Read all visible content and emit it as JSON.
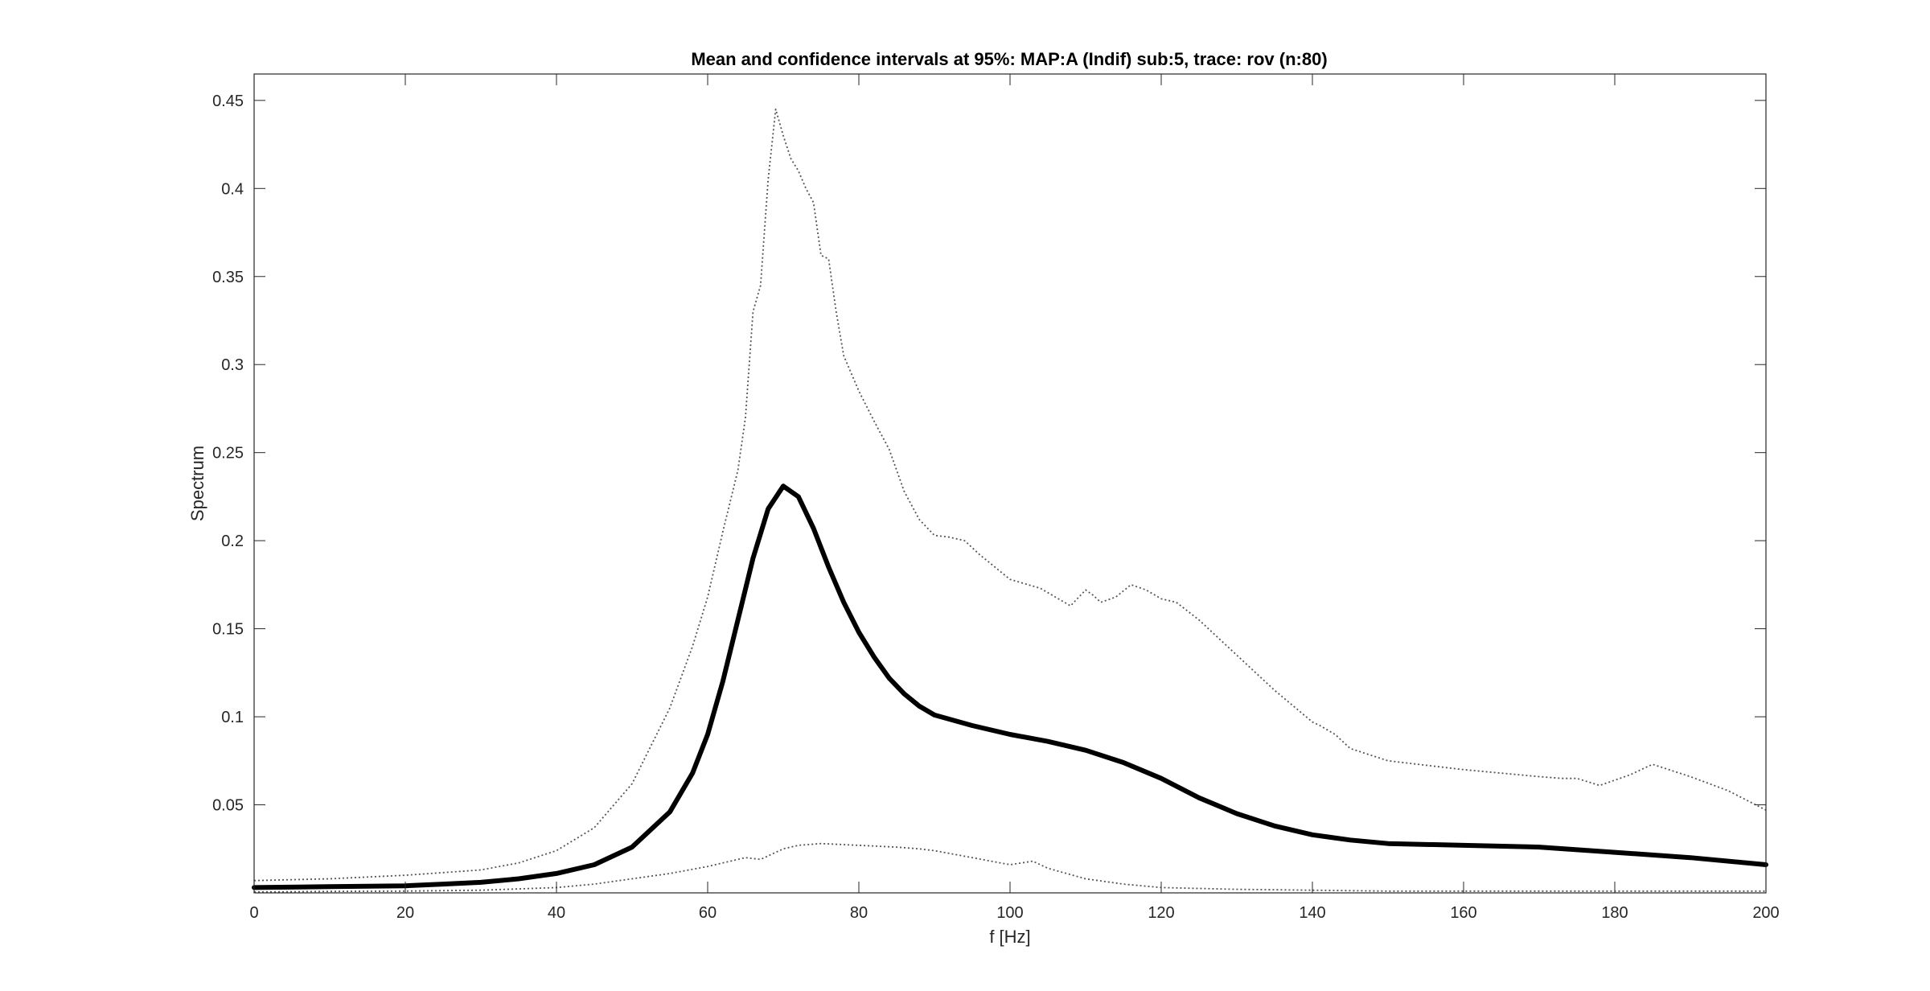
{
  "chart_data": {
    "type": "line",
    "title": "Mean and confidence intervals at 95%: MAP:A (Indif) sub:5, trace: rov (n:80)",
    "xlabel": "f [Hz]",
    "ylabel": "Spectrum",
    "xlim": [
      0,
      200
    ],
    "ylim": [
      0,
      0.465
    ],
    "xticks": [
      0,
      20,
      40,
      60,
      80,
      100,
      120,
      140,
      160,
      180,
      200
    ],
    "xtick_labels": [
      "0",
      "20",
      "40",
      "60",
      "80",
      "100",
      "120",
      "140",
      "160",
      "180",
      "200"
    ],
    "yticks": [
      0.05,
      0.1,
      0.15,
      0.2,
      0.25,
      0.3,
      0.35,
      0.4,
      0.45
    ],
    "ytick_labels": [
      "0.05",
      "0.1",
      "0.15",
      "0.2",
      "0.25",
      "0.3",
      "0.35",
      "0.4",
      "0.45"
    ],
    "grid": false,
    "legend": null,
    "series": [
      {
        "style": "solid-thick",
        "color": "#000000",
        "x": [
          0,
          10,
          20,
          25,
          30,
          35,
          40,
          45,
          50,
          55,
          58,
          60,
          62,
          64,
          66,
          68,
          70,
          72,
          74,
          76,
          78,
          80,
          82,
          84,
          86,
          88,
          90,
          95,
          100,
          105,
          110,
          115,
          120,
          125,
          130,
          135,
          140,
          145,
          150,
          160,
          170,
          180,
          190,
          200
        ],
        "y": [
          0.003,
          0.0035,
          0.004,
          0.005,
          0.006,
          0.008,
          0.011,
          0.016,
          0.026,
          0.046,
          0.068,
          0.09,
          0.12,
          0.155,
          0.19,
          0.218,
          0.231,
          0.225,
          0.207,
          0.185,
          0.165,
          0.148,
          0.134,
          0.122,
          0.113,
          0.106,
          0.101,
          0.095,
          0.09,
          0.086,
          0.081,
          0.074,
          0.065,
          0.054,
          0.045,
          0.038,
          0.033,
          0.03,
          0.028,
          0.027,
          0.026,
          0.023,
          0.02,
          0.016
        ]
      },
      {
        "style": "dotted",
        "color": "#555555",
        "x": [
          0,
          10,
          20,
          30,
          35,
          40,
          45,
          50,
          55,
          58,
          60,
          62,
          64,
          65,
          66,
          67,
          68,
          69,
          70,
          71,
          72,
          73,
          74,
          75,
          76,
          77,
          78,
          80,
          82,
          84,
          86,
          88,
          90,
          92,
          94,
          96,
          98,
          100,
          104,
          108,
          110,
          111,
          112,
          114,
          116,
          118,
          120,
          122,
          125,
          130,
          135,
          140,
          141,
          143,
          145,
          150,
          160,
          170,
          173,
          175,
          178,
          182,
          185,
          190,
          195,
          200
        ],
        "y": [
          0.007,
          0.008,
          0.01,
          0.013,
          0.017,
          0.024,
          0.037,
          0.062,
          0.105,
          0.14,
          0.168,
          0.205,
          0.24,
          0.27,
          0.33,
          0.345,
          0.405,
          0.445,
          0.43,
          0.417,
          0.41,
          0.4,
          0.392,
          0.362,
          0.36,
          0.33,
          0.305,
          0.285,
          0.268,
          0.252,
          0.228,
          0.212,
          0.203,
          0.202,
          0.2,
          0.192,
          0.185,
          0.178,
          0.173,
          0.163,
          0.172,
          0.169,
          0.165,
          0.168,
          0.175,
          0.172,
          0.167,
          0.165,
          0.155,
          0.135,
          0.115,
          0.097,
          0.095,
          0.09,
          0.082,
          0.075,
          0.07,
          0.066,
          0.065,
          0.065,
          0.061,
          0.067,
          0.073,
          0.066,
          0.058,
          0.047
        ]
      },
      {
        "style": "dotted",
        "color": "#555555",
        "x": [
          0,
          10,
          20,
          30,
          40,
          45,
          50,
          55,
          60,
          63,
          65,
          67,
          70,
          72,
          75,
          80,
          85,
          88,
          90,
          95,
          100,
          103,
          105,
          110,
          115,
          120,
          130,
          140,
          150,
          160,
          170,
          180,
          190,
          200
        ],
        "y": [
          0.0005,
          0.0008,
          0.001,
          0.0015,
          0.003,
          0.005,
          0.008,
          0.011,
          0.015,
          0.018,
          0.02,
          0.019,
          0.025,
          0.027,
          0.028,
          0.027,
          0.026,
          0.025,
          0.024,
          0.02,
          0.016,
          0.018,
          0.014,
          0.008,
          0.005,
          0.003,
          0.002,
          0.0015,
          0.001,
          0.001,
          0.001,
          0.001,
          0.001,
          0.001
        ]
      }
    ]
  }
}
